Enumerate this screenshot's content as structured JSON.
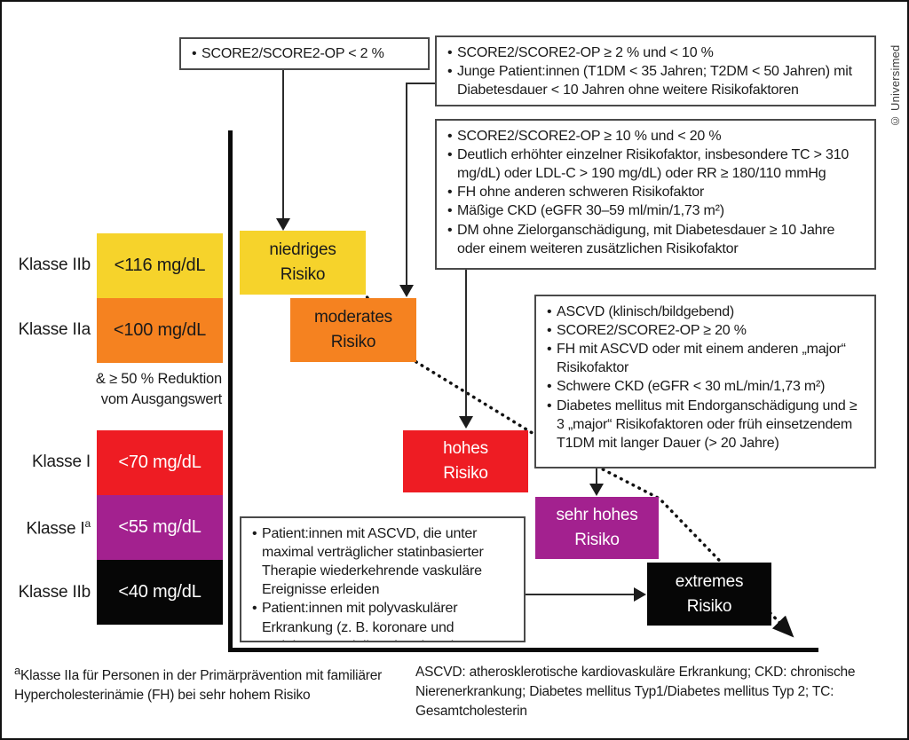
{
  "copyright": "© Universimed",
  "colors": {
    "low": "#F6D32B",
    "moderate": "#F58220",
    "high": "#EE1C23",
    "very_high": "#A3218F",
    "extreme": "#060606",
    "text_dark": "#1a1a1a",
    "text_light": "#ffffff"
  },
  "criteria_boxes": {
    "low": {
      "items": [
        "SCORE2/SCORE2-OP < 2 %"
      ]
    },
    "moderate": {
      "items": [
        "SCORE2/SCORE2-OP ≥ 2 % und < 10 %",
        "Junge Patient:innen (T1DM < 35 Jahren; T2DM < 50 Jahren) mit Diabetesdauer < 10 Jahren ohne weitere Risikofaktoren"
      ]
    },
    "high": {
      "items": [
        "SCORE2/SCORE2-OP ≥ 10 % und < 20 %",
        "Deutlich erhöhter einzelner Risikofaktor, insbesondere TC > 310 mg/dL) oder LDL-C > 190 mg/dL) oder RR ≥ 180/110 mmHg",
        "FH ohne anderen schweren Risikofaktor",
        "Mäßige CKD (eGFR 30–59 ml/min/1,73 m²)",
        "DM ohne Zielorganschädigung, mit Diabetesdauer ≥ 10 Jahre oder einem weiteren zusätzlichen Risikofaktor"
      ]
    },
    "very_high": {
      "items": [
        "ASCVD (klinisch/bildgebend)",
        "SCORE2/SCORE2-OP ≥ 20 %",
        "FH mit ASCVD oder mit einem anderen „major“ Risikofaktor",
        "Schwere CKD (eGFR < 30 mL/min/1,73 m²)",
        "Diabetes mellitus mit Endorganschädigung und ≥ 3 „major“ Risikofaktoren oder früh einsetzendem T1DM mit langer Dauer (> 20 Jahre)"
      ]
    },
    "extreme": {
      "items": [
        "Patient:innen mit ASCVD, die unter maximal verträglicher statinbasierter Therapie wiederkehrende vaskuläre Ereignisse erleiden",
        "Patient:innen mit polyvaskulärer Erkrankung (z. B. koronare und periphere arterielle Erkrankung)"
      ]
    }
  },
  "ldl_classes": [
    {
      "label": "Klasse IIb",
      "target": "<116 mg/dL",
      "bg": "#F6D32B",
      "fg": "#1a1a1a"
    },
    {
      "label": "Klasse IIa",
      "target": "<100 mg/dL",
      "bg": "#F58220",
      "fg": "#1a1a1a"
    },
    {
      "label": "Klasse I",
      "target": "<70 mg/dL",
      "bg": "#EE1C23",
      "fg": "#ffffff"
    },
    {
      "label": "Klasse I",
      "sup": "a",
      "target": "<55 mg/dL",
      "bg": "#A3218F",
      "fg": "#ffffff"
    },
    {
      "label": "Klasse IIb",
      "target": "<40 mg/dL",
      "bg": "#060606",
      "fg": "#ffffff"
    }
  ],
  "reduction_note": {
    "line1": "& ≥ 50 % Reduktion",
    "line2": "vom Ausgangswert"
  },
  "risk_steps": [
    {
      "line1": "niedriges",
      "line2": "Risiko",
      "bg": "#F6D32B",
      "fg": "#1a1a1a"
    },
    {
      "line1": "moderates",
      "line2": "Risiko",
      "bg": "#F58220",
      "fg": "#1a1a1a"
    },
    {
      "line1": "hohes",
      "line2": "Risiko",
      "bg": "#EE1C23",
      "fg": "#ffffff"
    },
    {
      "line1": "sehr hohes",
      "line2": "Risiko",
      "bg": "#A3218F",
      "fg": "#ffffff"
    },
    {
      "line1": "extremes",
      "line2": "Risiko",
      "bg": "#060606",
      "fg": "#ffffff"
    }
  ],
  "footnotes": {
    "left_sup": "a",
    "left": "Klasse IIa für Personen in der Primärprävention mit familiärer Hypercholesterinämie (FH) bei sehr hohem Risiko",
    "right": "ASCVD: atherosklerotische kardiovaskuläre Erkrankung; CKD: chronische Nierenerkrankung; Diabetes mellitus Typ1/Diabetes mellitus Typ 2; TC: Gesamtcholesterin"
  }
}
